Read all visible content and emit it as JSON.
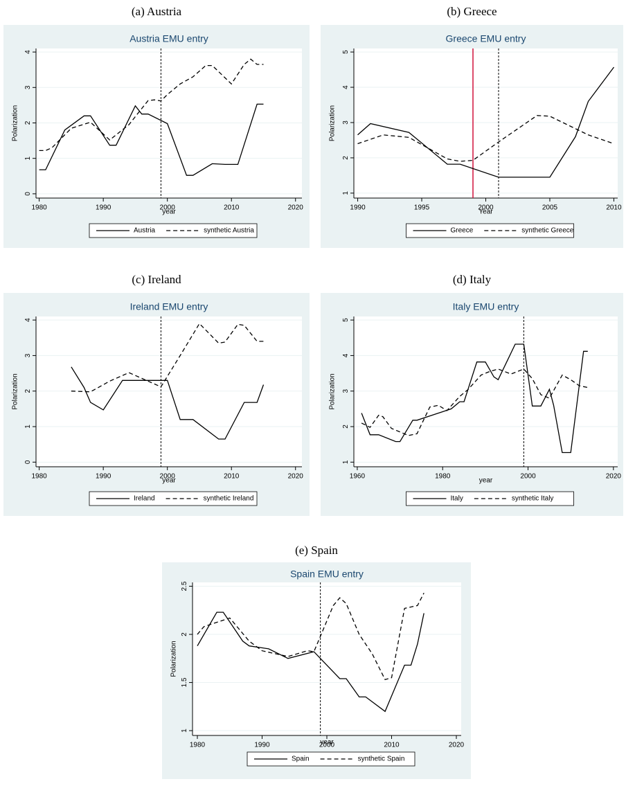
{
  "chart_data": [
    {
      "type": "line",
      "caption": "(a) Austria",
      "title": "Austria EMU entry",
      "xlabel": "year",
      "ylabel": "Polarization",
      "xlim": [
        1979.5,
        2021
      ],
      "xticks": [
        1980,
        1990,
        2000,
        2010,
        2020
      ],
      "ylim": [
        -0.12,
        4.1
      ],
      "yticks": [
        0,
        1,
        2,
        3,
        4
      ],
      "grid": true,
      "reference_lines": [
        {
          "value": 1999,
          "color": "#000000",
          "style": "dotted"
        }
      ],
      "series": [
        {
          "name": "Austria",
          "color": "#000000",
          "style": "solid",
          "x": [
            1980,
            1981,
            1984,
            1987,
            1988,
            1991,
            1992,
            1995,
            1996,
            1997,
            2000,
            2003,
            2004,
            2007,
            2009,
            2011,
            2014,
            2015
          ],
          "values": [
            0.68,
            0.68,
            1.8,
            2.2,
            2.2,
            1.37,
            1.37,
            2.48,
            2.25,
            2.25,
            1.98,
            0.52,
            0.52,
            0.85,
            0.83,
            0.83,
            2.53,
            2.53
          ]
        },
        {
          "name": "synthetic Austria",
          "color": "#000000",
          "style": "dashed",
          "x": [
            1980,
            1981,
            1982,
            1985,
            1988,
            1991,
            1994,
            1997,
            1998,
            1999,
            2000,
            2002,
            2004,
            2006,
            2007,
            2010,
            2012,
            2013,
            2014,
            2015
          ],
          "values": [
            1.22,
            1.22,
            1.3,
            1.85,
            2.02,
            1.52,
            1.95,
            2.63,
            2.65,
            2.62,
            2.8,
            3.1,
            3.3,
            3.62,
            3.62,
            3.1,
            3.65,
            3.8,
            3.65,
            3.65
          ]
        }
      ]
    },
    {
      "type": "line",
      "caption": "(b) Greece",
      "title": "Greece EMU entry",
      "xlabel": "Year",
      "ylabel": "Polarization",
      "xlim": [
        1989.7,
        2010.3
      ],
      "xticks": [
        1990,
        1995,
        2000,
        2005,
        2010
      ],
      "ylim": [
        0.86,
        5.1
      ],
      "yticks": [
        1,
        2,
        3,
        4,
        5
      ],
      "grid": true,
      "reference_lines": [
        {
          "value": 1999,
          "color": "#d0103a",
          "style": "solid"
        },
        {
          "value": 2001,
          "color": "#000000",
          "style": "dotted"
        }
      ],
      "series": [
        {
          "name": "Greece",
          "color": "#000000",
          "style": "solid",
          "x": [
            1990,
            1991,
            1994,
            1997,
            1998,
            2001,
            2005,
            2007,
            2008,
            2010
          ],
          "values": [
            2.65,
            2.97,
            2.72,
            1.82,
            1.82,
            1.45,
            1.45,
            2.6,
            3.6,
            4.57
          ]
        },
        {
          "name": "synthetic Greece",
          "color": "#000000",
          "style": "dashed",
          "x": [
            1990,
            1992,
            1994,
            1997,
            1998,
            1999,
            2001,
            2004,
            2005,
            2008,
            2010
          ],
          "values": [
            2.4,
            2.65,
            2.58,
            1.97,
            1.9,
            1.93,
            2.45,
            3.2,
            3.18,
            2.65,
            2.4
          ]
        }
      ]
    },
    {
      "type": "line",
      "caption": "(c) Ireland",
      "title": "Ireland EMU entry",
      "xlabel": "year",
      "ylabel": "Polarization",
      "xlim": [
        1979.5,
        2021
      ],
      "xticks": [
        1980,
        1990,
        2000,
        2010,
        2020
      ],
      "ylim": [
        -0.13,
        4.1
      ],
      "yticks": [
        0,
        1,
        2,
        3,
        4
      ],
      "grid": true,
      "reference_lines": [
        {
          "value": 1999,
          "color": "#000000",
          "style": "dotted"
        }
      ],
      "series": [
        {
          "name": "Ireland",
          "color": "#000000",
          "style": "solid",
          "x": [
            1985,
            1987,
            1988,
            1990,
            1993,
            1998,
            2000,
            2002,
            2004,
            2008,
            2009,
            2012,
            2014,
            2015
          ],
          "values": [
            2.68,
            2.1,
            1.68,
            1.47,
            2.3,
            2.3,
            2.3,
            1.2,
            1.2,
            0.65,
            0.65,
            1.68,
            1.68,
            2.18
          ]
        },
        {
          "name": "synthetic Ireland",
          "color": "#000000",
          "style": "dashed",
          "x": [
            1985,
            1988,
            1991,
            1994,
            1999,
            2002,
            2005,
            2008,
            2009,
            2011,
            2012,
            2014,
            2015
          ],
          "values": [
            2.0,
            1.98,
            2.28,
            2.52,
            2.12,
            3.0,
            3.9,
            3.35,
            3.38,
            3.88,
            3.85,
            3.4,
            3.4
          ]
        }
      ]
    },
    {
      "type": "line",
      "caption": "(d) Italy",
      "title": "Italy EMU entry",
      "xlabel": "year",
      "ylabel": "Polarization",
      "xlim": [
        1959.2,
        2021
      ],
      "xticks": [
        1960,
        1980,
        2000,
        2020
      ],
      "ylim": [
        0.87,
        5.1
      ],
      "yticks": [
        1,
        2,
        3,
        4,
        5
      ],
      "grid": true,
      "reference_lines": [
        {
          "value": 1999,
          "color": "#000000",
          "style": "dotted"
        }
      ],
      "series": [
        {
          "name": "Italy",
          "color": "#000000",
          "style": "solid",
          "x": [
            1961,
            1963,
            1965,
            1969,
            1970,
            1973,
            1974,
            1982,
            1984,
            1985,
            1988,
            1990,
            1992,
            1993,
            1995,
            1997,
            1999,
            2001,
            2003,
            2005,
            2006,
            2008,
            2010,
            2013,
            2014
          ],
          "values": [
            2.38,
            1.77,
            1.77,
            1.58,
            1.58,
            2.18,
            2.18,
            2.5,
            2.7,
            2.7,
            3.82,
            3.82,
            3.4,
            3.32,
            3.82,
            4.32,
            4.32,
            2.58,
            2.58,
            3.05,
            2.6,
            1.27,
            1.27,
            4.12,
            4.12
          ]
        },
        {
          "name": "synthetic Italy",
          "color": "#000000",
          "style": "dashed",
          "x": [
            1961,
            1963,
            1965,
            1966,
            1968,
            1972,
            1974,
            1977,
            1979,
            1981,
            1984,
            1986,
            1989,
            1991,
            1993,
            1996,
            1999,
            2001,
            2003,
            2005,
            2008,
            2010,
            2012,
            2014
          ],
          "values": [
            2.1,
            1.98,
            2.32,
            2.28,
            1.95,
            1.75,
            1.8,
            2.55,
            2.6,
            2.45,
            2.85,
            3.05,
            3.45,
            3.55,
            3.62,
            3.48,
            3.62,
            3.35,
            2.9,
            2.8,
            3.45,
            3.32,
            3.15,
            3.1
          ]
        }
      ]
    },
    {
      "type": "line",
      "caption": "(e) Spain",
      "title": "Spain EMU entry",
      "xlabel": "year",
      "ylabel": "Polarization",
      "xlim": [
        1979.25,
        2020.75
      ],
      "xticks": [
        1980,
        1990,
        2000,
        2010,
        2020
      ],
      "ylim": [
        0.95,
        2.54
      ],
      "yticks": [
        1,
        1.5,
        2,
        2.5
      ],
      "grid": true,
      "reference_lines": [
        {
          "value": 1999,
          "color": "#000000",
          "style": "dotted"
        }
      ],
      "series": [
        {
          "name": "Spain",
          "color": "#000000",
          "style": "solid",
          "x": [
            1980,
            1983,
            1984,
            1987,
            1988,
            1991,
            1994,
            1998,
            2002,
            2003,
            2005,
            2006,
            2009,
            2012,
            2013,
            2014,
            2015
          ],
          "values": [
            1.88,
            2.23,
            2.23,
            1.93,
            1.88,
            1.85,
            1.75,
            1.82,
            1.54,
            1.54,
            1.35,
            1.35,
            1.2,
            1.68,
            1.68,
            1.9,
            2.22
          ]
        },
        {
          "name": "synthetic Spain",
          "color": "#000000",
          "style": "dashed",
          "x": [
            1980,
            1981,
            1985,
            1988,
            1990,
            1992,
            1994,
            1997,
            1998,
            1999,
            2001,
            2002,
            2003,
            2005,
            2007,
            2009,
            2010,
            2012,
            2014,
            2015
          ],
          "values": [
            2.0,
            2.08,
            2.17,
            1.93,
            1.83,
            1.8,
            1.77,
            1.83,
            1.82,
            1.98,
            2.3,
            2.38,
            2.32,
            2.0,
            1.8,
            1.53,
            1.55,
            2.27,
            2.3,
            2.43
          ]
        }
      ]
    }
  ]
}
